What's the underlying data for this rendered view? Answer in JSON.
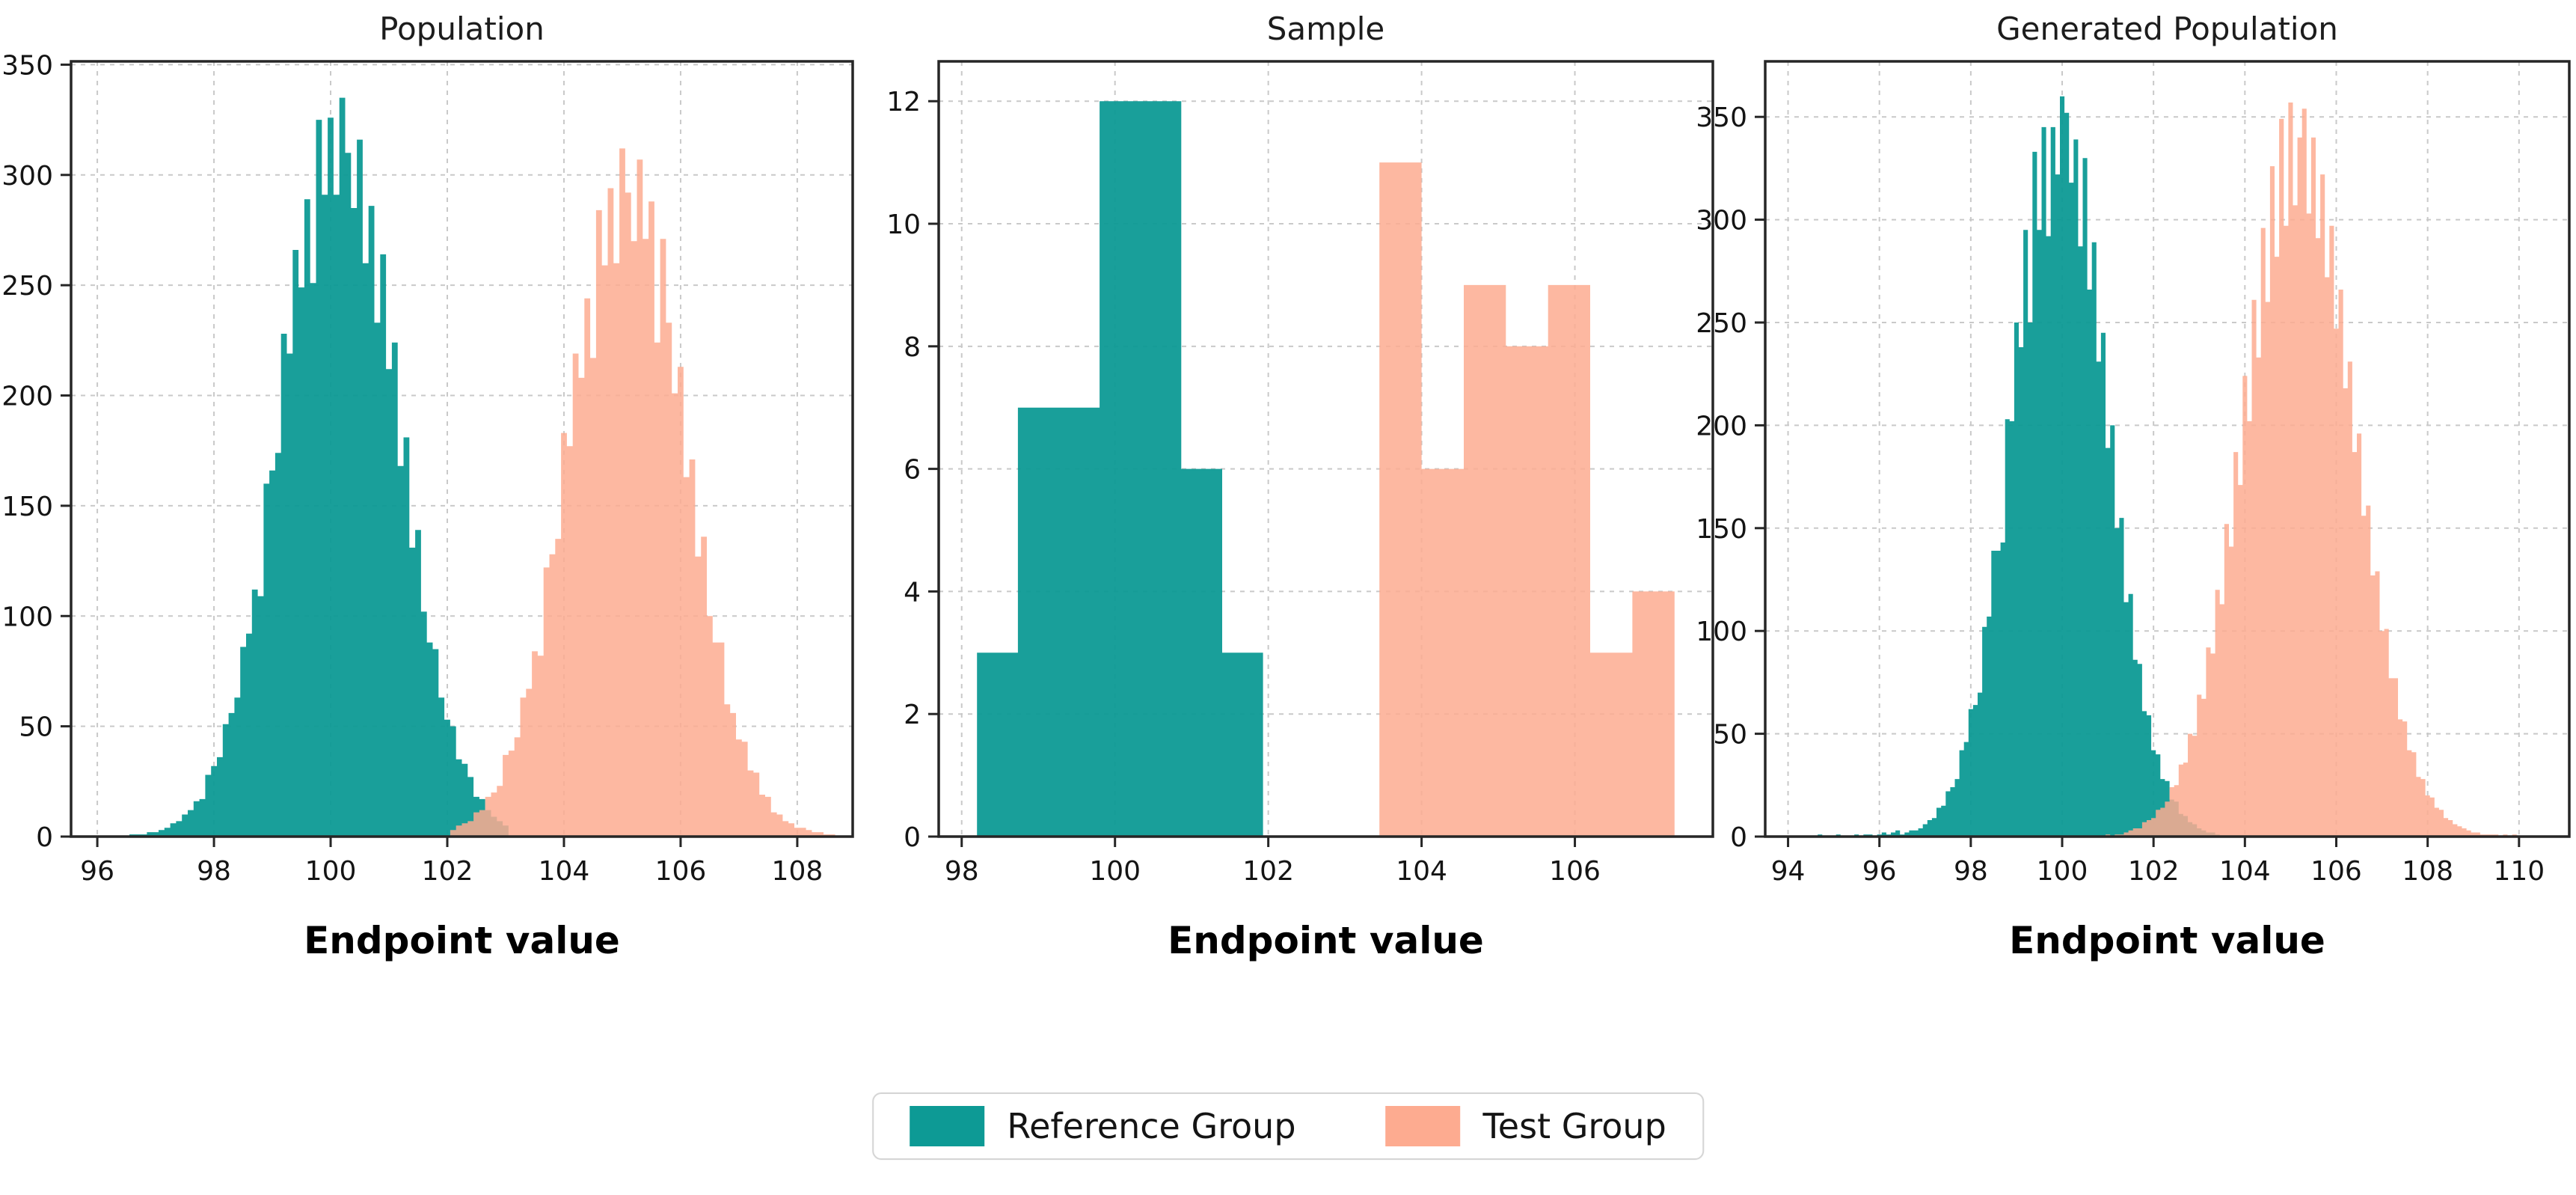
{
  "figure": {
    "background": "#ffffff"
  },
  "colors": {
    "reference": "#0D9A95",
    "test": "#FDAB90",
    "grid": "#c9c9c9",
    "spine": "#262626"
  },
  "legend": {
    "position": "bottom-center",
    "items": [
      {
        "label": "Reference Group",
        "color": "#0D9A95",
        "swatch": "reference-group-swatch"
      },
      {
        "label": "Test Group",
        "color": "#FDAB90",
        "swatch": "test-group-swatch"
      }
    ]
  },
  "chart_data": [
    {
      "type": "bar",
      "subtype": "histogram",
      "title": "Population",
      "xlabel": "Endpoint value",
      "ylabel": "",
      "grid": true,
      "xlim": [
        95.55,
        108.95
      ],
      "ylim": [
        0,
        351.5
      ],
      "xticks": [
        96,
        98,
        100,
        102,
        104,
        106,
        108
      ],
      "yticks": [
        0,
        50,
        100,
        150,
        200,
        250,
        300,
        350
      ],
      "series": [
        {
          "name": "Reference Group",
          "color": "#0D9A95",
          "bin_start": 96.25,
          "bin_width": 0.1,
          "counts": [
            0,
            0,
            0,
            1,
            1,
            1,
            2,
            2,
            3,
            4,
            6,
            7,
            10,
            12,
            16,
            17,
            28,
            32,
            36,
            51,
            56,
            63,
            86,
            92,
            112,
            109,
            160,
            166,
            174,
            228,
            219,
            266,
            249,
            289,
            251,
            325,
            291,
            326,
            291,
            335,
            310,
            285,
            316,
            260,
            286,
            233,
            264,
            212,
            224,
            168,
            181,
            131,
            139,
            102,
            88,
            85,
            63,
            53,
            50,
            35,
            33,
            27,
            18,
            17,
            12,
            9,
            7,
            5
          ]
        },
        {
          "name": "Test Group",
          "color": "#FDAB90",
          "bin_start": 102.05,
          "bin_width": 0.1,
          "counts": [
            3,
            5,
            6,
            7,
            11,
            12,
            18,
            20,
            23,
            37,
            39,
            45,
            63,
            67,
            84,
            82,
            122,
            128,
            135,
            183,
            177,
            219,
            208,
            244,
            217,
            284,
            259,
            294,
            260,
            312,
            292,
            270,
            307,
            271,
            288,
            224,
            271,
            233,
            201,
            213,
            163,
            171,
            127,
            136,
            100,
            88,
            88,
            60,
            56,
            44,
            43,
            30,
            29,
            19,
            18,
            11,
            10,
            7,
            6,
            4,
            4,
            3,
            2,
            2,
            1,
            1
          ]
        }
      ]
    },
    {
      "type": "bar",
      "subtype": "histogram",
      "title": "Sample",
      "xlabel": "Endpoint value",
      "ylabel": "",
      "grid": true,
      "xlim": [
        97.7,
        107.8
      ],
      "ylim": [
        0,
        12.65
      ],
      "xticks": [
        98,
        100,
        102,
        104,
        106
      ],
      "yticks": [
        0,
        2,
        4,
        6,
        8,
        10,
        12
      ],
      "series": [
        {
          "name": "Reference Group",
          "color": "#0D9A95",
          "bin_start": 98.2,
          "bin_width": 0.533,
          "counts": [
            3,
            7,
            7,
            12,
            12,
            6,
            3
          ]
        },
        {
          "name": "Test Group",
          "color": "#FDAB90",
          "bin_start": 103.45,
          "bin_width": 0.55,
          "counts": [
            11,
            6,
            9,
            8,
            9,
            3,
            4
          ]
        }
      ]
    },
    {
      "type": "bar",
      "subtype": "histogram",
      "title": "Generated Population",
      "xlabel": "Endpoint value",
      "ylabel": "",
      "grid": true,
      "xlim": [
        93.5,
        111.1
      ],
      "ylim": [
        0,
        377
      ],
      "xticks": [
        94,
        96,
        98,
        100,
        102,
        104,
        106,
        108,
        110
      ],
      "yticks": [
        0,
        50,
        100,
        150,
        200,
        250,
        300,
        350
      ],
      "series": [
        {
          "name": "Reference Group",
          "color": "#0D9A95",
          "bin_start": 94.65,
          "bin_width": 0.1,
          "counts": [
            1,
            0,
            0,
            0,
            1,
            0,
            0,
            0,
            1,
            0,
            1,
            1,
            0,
            1,
            2,
            1,
            2,
            3,
            1,
            2,
            3,
            3,
            4,
            6,
            8,
            9,
            14,
            15,
            22,
            24,
            28,
            42,
            46,
            62,
            64,
            70,
            102,
            107,
            139,
            139,
            143,
            203,
            202,
            250,
            238,
            295,
            250,
            333,
            295,
            345,
            292,
            345,
            322,
            360,
            352,
            318,
            339,
            287,
            330,
            266,
            289,
            231,
            245,
            189,
            200,
            150,
            155,
            114,
            118,
            86,
            84,
            61,
            59,
            42,
            40,
            28,
            27,
            18,
            17,
            11,
            10,
            7,
            6,
            4,
            3,
            2,
            2,
            1
          ]
        },
        {
          "name": "Test Group",
          "color": "#FDAB90",
          "bin_start": 100.95,
          "bin_width": 0.1,
          "counts": [
            1,
            0,
            1,
            1,
            2,
            3,
            4,
            4,
            7,
            8,
            9,
            13,
            14,
            17,
            24,
            25,
            35,
            36,
            50,
            49,
            69,
            67,
            92,
            89,
            120,
            113,
            152,
            141,
            187,
            171,
            224,
            202,
            261,
            233,
            296,
            260,
            326,
            282,
            349,
            297,
            357,
            307,
            340,
            354,
            303,
            340,
            291,
            322,
            272,
            297,
            247,
            266,
            218,
            231,
            187,
            196,
            156,
            161,
            127,
            129,
            100,
            101,
            77,
            77,
            57,
            56,
            42,
            41,
            29,
            28,
            20,
            19,
            14,
            13,
            9,
            8,
            6,
            5,
            4,
            3,
            2,
            2,
            1,
            1,
            1,
            1,
            0,
            1,
            0,
            1
          ]
        }
      ]
    }
  ]
}
